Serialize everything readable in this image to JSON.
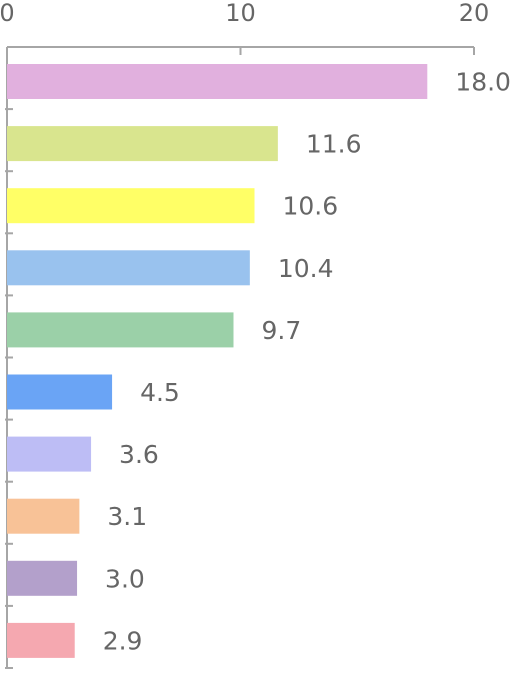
{
  "chart_data": {
    "type": "bar",
    "orientation": "horizontal",
    "title": "",
    "xlabel": "",
    "ylabel": "",
    "xlim": [
      0,
      20
    ],
    "x_ticks": [
      0,
      10,
      20
    ],
    "x_tick_labels": [
      "0",
      "10",
      "20"
    ],
    "axis_position": "top",
    "grid": false,
    "legend": "none",
    "values": [
      18.0,
      11.6,
      10.6,
      10.4,
      9.7,
      4.5,
      3.6,
      3.1,
      3.0,
      2.9
    ],
    "value_labels": [
      "18.0",
      "11.6",
      "10.6",
      "10.4",
      "9.7",
      "4.5",
      "3.6",
      "3.1",
      "3.0",
      "2.9"
    ],
    "colors": [
      "#E1B0DE",
      "#D9E58E",
      "#FFFF66",
      "#99C2EE",
      "#9BD0A8",
      "#6AA4F5",
      "#BDBDF5",
      "#F8C297",
      "#B3A0CB",
      "#F5A8B0"
    ]
  }
}
